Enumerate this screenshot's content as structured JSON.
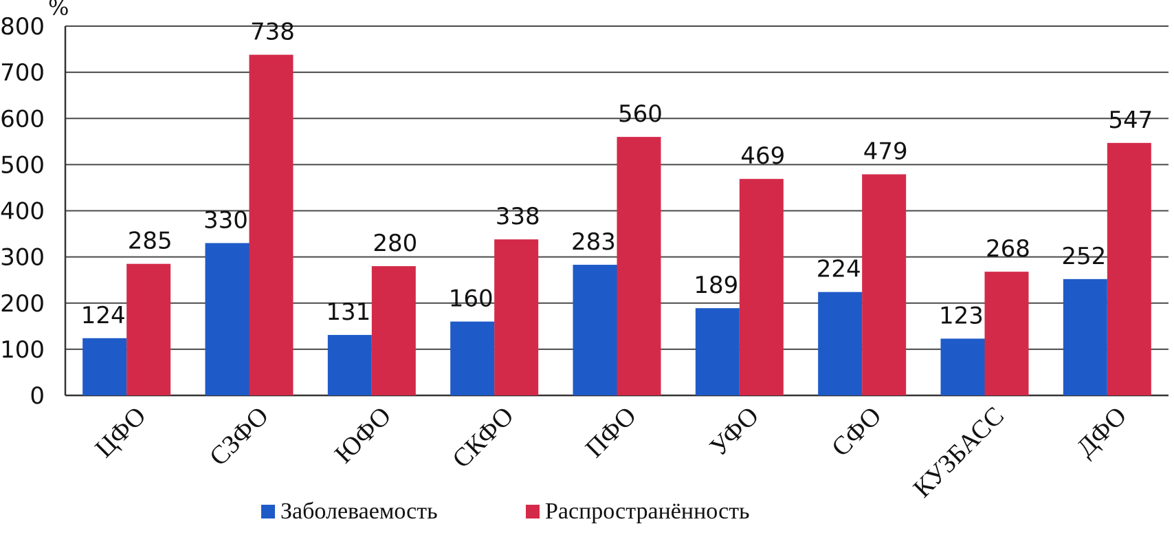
{
  "chart_data": {
    "type": "bar",
    "unit_label": "%",
    "categories": [
      "ЦФО",
      "СЗФО",
      "ЮФО",
      "СКФО",
      "ПФО",
      "УФО",
      "СФО",
      "КУЗБАСС",
      "ДФО"
    ],
    "series": [
      {
        "name": "Заболеваемость",
        "color": "#1f5bc8",
        "values": [
          124,
          330,
          131,
          160,
          283,
          189,
          224,
          123,
          252
        ]
      },
      {
        "name": "Распространённость",
        "color": "#d42a4a",
        "values": [
          285,
          738,
          280,
          338,
          560,
          469,
          479,
          268,
          547
        ]
      }
    ],
    "ylim": [
      0,
      800
    ],
    "yticks": [
      0,
      100,
      200,
      300,
      400,
      500,
      600,
      700,
      800
    ],
    "grid": true,
    "legend_position": "bottom"
  }
}
